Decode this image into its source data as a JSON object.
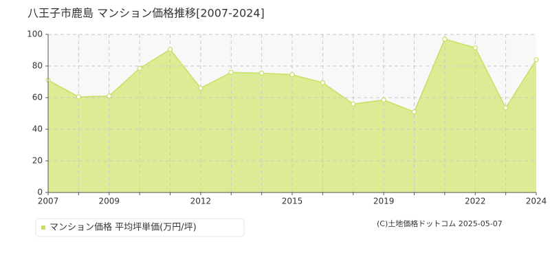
{
  "chart_data": {
    "type": "area",
    "title": "八王子市鹿島 マンション価格推移[2007-2024]",
    "categories": [
      "2007",
      null,
      "2009",
      null,
      null,
      "2012",
      null,
      null,
      "2015",
      null,
      null,
      "2019",
      null,
      null,
      "2022",
      null,
      "2024"
    ],
    "series": [
      {
        "name": "マンション価格 平均坪単価(万円/坪)",
        "color": "#c5e063",
        "values": [
          71,
          60.5,
          61,
          78.5,
          90.5,
          66,
          76,
          75.5,
          74.5,
          69.5,
          56,
          58.5,
          51,
          97,
          91.5,
          53.5,
          84
        ]
      }
    ],
    "ylim": [
      0,
      100
    ],
    "yticks": [
      0,
      20,
      40,
      60,
      80,
      100
    ],
    "grid": true,
    "credit": "(C)土地価格ドットコム 2025-05-07"
  }
}
